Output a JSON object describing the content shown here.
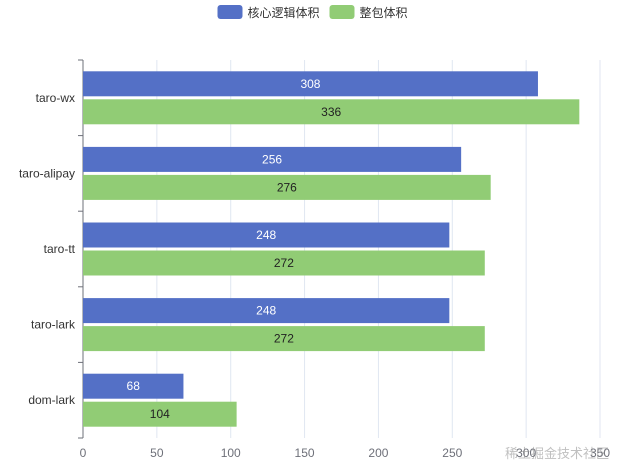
{
  "chart_data": {
    "type": "bar",
    "orientation": "horizontal",
    "categories": [
      "taro-wx",
      "taro-alipay",
      "taro-tt",
      "taro-lark",
      "dom-lark"
    ],
    "series": [
      {
        "name": "核心逻辑体积",
        "values": [
          308,
          256,
          248,
          248,
          68
        ],
        "color": "#5470c6"
      },
      {
        "name": "整包体积",
        "values": [
          336,
          276,
          272,
          272,
          104
        ],
        "color": "#91cc75"
      }
    ],
    "xlim": [
      0,
      350
    ],
    "xticks": [
      "0",
      "50",
      "100",
      "150",
      "200",
      "250",
      "300",
      "350"
    ],
    "grid": true,
    "legend_position": "top-center",
    "data_labels": true
  },
  "watermark": "稀土掘金技术社区"
}
